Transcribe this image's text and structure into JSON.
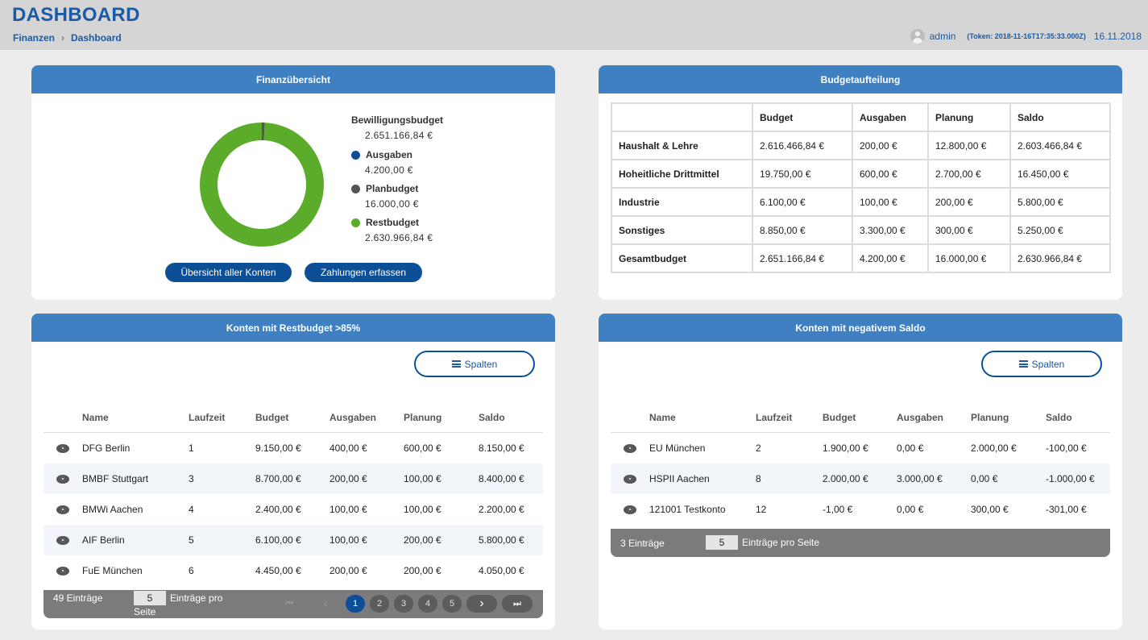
{
  "header": {
    "title": "DASHBOARD",
    "breadcrumb": [
      "Finanzen",
      "Dashboard"
    ],
    "breadcrumb_sep": "›",
    "user": "admin",
    "token": "(Token: 2018-11-16T17:35:33.000Z)",
    "date": "16.11.2018"
  },
  "overview": {
    "title": "Finanzübersicht",
    "items": [
      {
        "label": "Bewilligungsbudget",
        "value": "2.651.166,84 €"
      },
      {
        "label": "Ausgaben",
        "value": "4.200,00 €",
        "color": "#0d4f96"
      },
      {
        "label": "Planbudget",
        "value": "16.000,00 €",
        "color": "#555555"
      },
      {
        "label": "Restbudget",
        "value": "2.630.966,84 €",
        "color": "#5aac2a"
      }
    ],
    "chart_data": {
      "type": "pie",
      "categories": [
        "Ausgaben",
        "Planbudget",
        "Restbudget"
      ],
      "values": [
        4200.0,
        16000.0,
        2630966.84
      ],
      "colors": [
        "#0d4f96",
        "#555555",
        "#5aac2a"
      ]
    },
    "buttons": {
      "accounts": "Übersicht aller Konten",
      "payments": "Zahlungen erfassen"
    }
  },
  "budget": {
    "title": "Budgetaufteilung",
    "columns": [
      "",
      "Budget",
      "Ausgaben",
      "Planung",
      "Saldo"
    ],
    "rows": [
      [
        "Haushalt & Lehre",
        "2.616.466,84 €",
        "200,00 €",
        "12.800,00 €",
        "2.603.466,84 €"
      ],
      [
        "Hoheitliche Drittmittel",
        "19.750,00 €",
        "600,00 €",
        "2.700,00 €",
        "16.450,00 €"
      ],
      [
        "Industrie",
        "6.100,00 €",
        "100,00 €",
        "200,00 €",
        "5.800,00 €"
      ],
      [
        "Sonstiges",
        "8.850,00 €",
        "3.300,00 €",
        "300,00 €",
        "5.250,00 €"
      ],
      [
        "Gesamtbudget",
        "2.651.166,84 €",
        "4.200,00 €",
        "16.000,00 €",
        "2.630.966,84 €"
      ]
    ]
  },
  "rest": {
    "title": "Konten mit Restbudget >85%",
    "spalten": "Spalten",
    "columns": [
      "Name",
      "Laufzeit",
      "Budget",
      "Ausgaben",
      "Planung",
      "Saldo"
    ],
    "rows": [
      [
        "DFG Berlin",
        "1",
        "9.150,00 €",
        "400,00 €",
        "600,00 €",
        "8.150,00 €"
      ],
      [
        "BMBF Stuttgart",
        "3",
        "8.700,00 €",
        "200,00 €",
        "100,00 €",
        "8.400,00 €"
      ],
      [
        "BMWi Aachen",
        "4",
        "2.400,00 €",
        "100,00 €",
        "100,00 €",
        "2.200,00 €"
      ],
      [
        "AIF Berlin",
        "5",
        "6.100,00 €",
        "100,00 €",
        "200,00 €",
        "5.800,00 €"
      ],
      [
        "FuE München",
        "6",
        "4.450,00 €",
        "200,00 €",
        "200,00 €",
        "4.050,00 €"
      ]
    ],
    "count": "49 Einträge",
    "per_page": "5",
    "per_page_label_1": "Einträge pro",
    "per_page_label_2": "Seite",
    "pages": [
      "1",
      "2",
      "3",
      "4",
      "5"
    ],
    "first": "⏮",
    "prev": "‹",
    "next": "›",
    "last": "⏭"
  },
  "negative": {
    "title": "Konten mit negativem Saldo",
    "spalten": "Spalten",
    "columns": [
      "Name",
      "Laufzeit",
      "Budget",
      "Ausgaben",
      "Planung",
      "Saldo"
    ],
    "rows": [
      [
        "EU München",
        "2",
        "1.900,00 €",
        "0,00 €",
        "2.000,00 €",
        "-100,00 €"
      ],
      [
        "HSPII Aachen",
        "8",
        "2.000,00 €",
        "3.000,00 €",
        "0,00 €",
        "-1.000,00 €"
      ],
      [
        "121001 Testkonto",
        "12",
        "-1,00 €",
        "0,00 €",
        "300,00 €",
        "-301,00 €"
      ]
    ],
    "count": "3 Einträge",
    "per_page": "5",
    "per_page_label": "Einträge pro Seite"
  }
}
